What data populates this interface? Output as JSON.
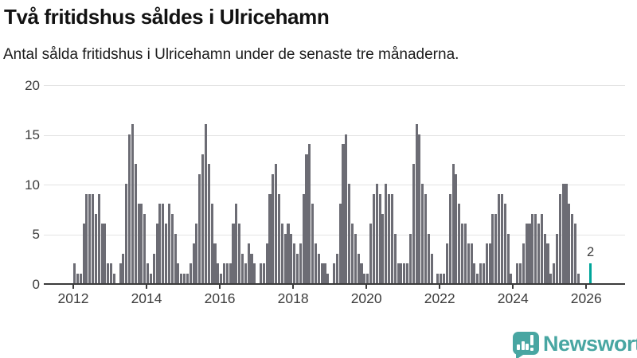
{
  "title": "Två fritidshus såldes i Ulricehamn",
  "subtitle": "Antal sålda fritidshus i Ulricehamn under de senaste tre månaderna.",
  "chart_data": {
    "type": "bar",
    "title": "Två fritidshus såldes i Ulricehamn",
    "subtitle": "Antal sålda fritidshus i Ulricehamn under de senaste tre månaderna.",
    "x_start_month": "2012-01",
    "x_end_month": "2026-02",
    "x_tick_labels": [
      "2012",
      "2014",
      "2016",
      "2018",
      "2020",
      "2022",
      "2024",
      "2026"
    ],
    "y_ticks": [
      0,
      5,
      10,
      15,
      20
    ],
    "ylim": [
      0,
      20
    ],
    "grid": "horizontal",
    "values": [
      2,
      1,
      1,
      6,
      9,
      9,
      9,
      7,
      9,
      6,
      6,
      2,
      2,
      1,
      0,
      2,
      3,
      10,
      15,
      16,
      12,
      8,
      8,
      7,
      2,
      1,
      3,
      6,
      8,
      8,
      6,
      8,
      7,
      5,
      2,
      1,
      1,
      1,
      2,
      4,
      6,
      11,
      13,
      16,
      12,
      8,
      4,
      2,
      1,
      2,
      2,
      2,
      6,
      8,
      6,
      3,
      2,
      4,
      3,
      2,
      0,
      2,
      2,
      4,
      9,
      11,
      12,
      9,
      6,
      5,
      6,
      5,
      4,
      3,
      4,
      9,
      13,
      14,
      8,
      4,
      3,
      2,
      2,
      1,
      0,
      2,
      3,
      8,
      14,
      15,
      10,
      6,
      5,
      3,
      2,
      1,
      1,
      6,
      9,
      10,
      9,
      7,
      10,
      9,
      9,
      5,
      2,
      2,
      2,
      2,
      5,
      12,
      16,
      15,
      10,
      9,
      5,
      3,
      0,
      1,
      1,
      1,
      4,
      9,
      12,
      11,
      8,
      6,
      6,
      4,
      4,
      2,
      1,
      2,
      2,
      4,
      4,
      7,
      7,
      9,
      9,
      8,
      5,
      1,
      0,
      2,
      2,
      4,
      6,
      6,
      7,
      7,
      6,
      7,
      5,
      4,
      1,
      2,
      5,
      9,
      10,
      10,
      8,
      7,
      6,
      1,
      0,
      0,
      0,
      2
    ],
    "bar_color": "#6c6c74",
    "highlight_color": "#00a59a",
    "highlight_index": 169,
    "highlight_label": "2",
    "legend": "none"
  },
  "logo": {
    "text": "Newsworthy",
    "color": "#48a6a2",
    "icon": "newsworthy-speech-bubble-bar-chart-icon"
  }
}
